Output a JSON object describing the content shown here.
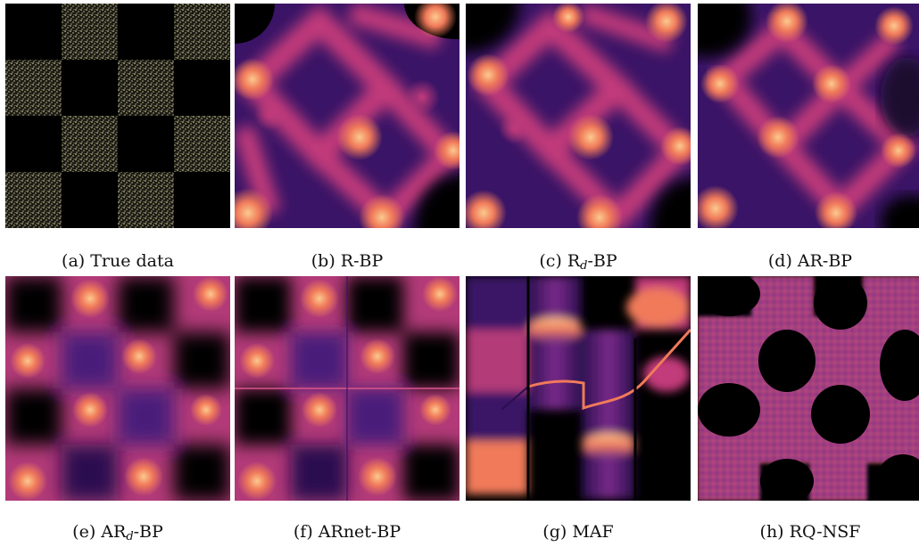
{
  "panels": [
    {
      "caption_prefix": "(a) True data",
      "caption_base": "",
      "caption_sub": "",
      "caption_suffix": "",
      "kind": "checker"
    },
    {
      "caption_prefix": "(b) R-BP",
      "caption_base": "",
      "caption_sub": "",
      "caption_suffix": "",
      "kind": "blob"
    },
    {
      "caption_prefix": "(c) R",
      "caption_base": "",
      "caption_sub": "d",
      "caption_suffix": "-BP",
      "kind": "blob"
    },
    {
      "caption_prefix": "(d) AR-BP",
      "caption_base": "",
      "caption_sub": "",
      "caption_suffix": "",
      "kind": "blob"
    },
    {
      "caption_prefix": "(e) AR",
      "caption_base": "",
      "caption_sub": "d",
      "caption_suffix": "-BP",
      "kind": "grid"
    },
    {
      "caption_prefix": "(f) ARnet-BP",
      "caption_base": "",
      "caption_sub": "",
      "caption_suffix": "",
      "kind": "grid"
    },
    {
      "caption_prefix": "(g) MAF",
      "caption_base": "",
      "caption_sub": "",
      "caption_suffix": "",
      "kind": "maf"
    },
    {
      "caption_prefix": "(h) RQ-NSF",
      "caption_base": "",
      "caption_sub": "",
      "caption_suffix": "",
      "kind": "nsf"
    }
  ],
  "colors": {
    "background": "#000000",
    "dark_purple": "#2a0f4f",
    "purple": "#6a2a8a",
    "magenta": "#c23b7a",
    "orange": "#f07a5a",
    "peach": "#fcc98e",
    "speckle": "#e8e4b0"
  }
}
